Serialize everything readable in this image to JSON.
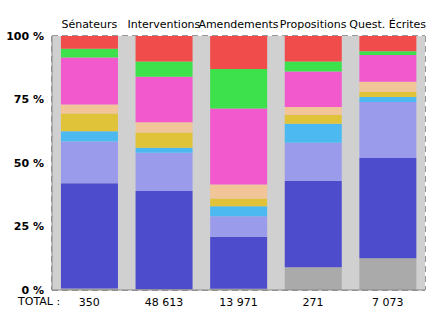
{
  "chart_data": {
    "type": "bar",
    "stacked": true,
    "grid": true,
    "categories": [
      "Sénateurs",
      "Interventions",
      "Amendements",
      "Propositions",
      "Quest. Écrites"
    ],
    "ylim": [
      0,
      100
    ],
    "yticks": [
      {
        "value": 0,
        "label": "0 %"
      },
      {
        "value": 25,
        "label": "25 %"
      },
      {
        "value": 50,
        "label": "50 %"
      },
      {
        "value": 75,
        "label": "75 %"
      },
      {
        "value": 100,
        "label": "100 %"
      }
    ],
    "series": [
      {
        "color": "#a8a8a8",
        "values": [
          0.6,
          0.3,
          0.5,
          9,
          12.5
        ]
      },
      {
        "color": "#4444cc",
        "values": [
          41.4,
          38.7,
          20.5,
          34,
          39.5
        ]
      },
      {
        "color": "#9898ec",
        "values": [
          16.5,
          15,
          8,
          15,
          22
        ]
      },
      {
        "color": "#44b8f2",
        "values": [
          4,
          2,
          4,
          7.5,
          2
        ]
      },
      {
        "color": "#e2c232",
        "values": [
          7,
          6,
          3,
          3.5,
          2
        ]
      },
      {
        "color": "#f2c494",
        "values": [
          3.5,
          4,
          5.5,
          3,
          4
        ]
      },
      {
        "color": "#f252cc",
        "values": [
          18.5,
          18,
          30,
          14,
          10.5
        ]
      },
      {
        "color": "#34e244",
        "values": [
          3.5,
          6,
          15.5,
          4,
          1.5
        ]
      },
      {
        "color": "#f24444",
        "values": [
          5,
          10,
          13,
          10,
          6
        ]
      }
    ],
    "totals_label": "TOTAL :",
    "totals": [
      {
        "value": 350,
        "label": "350"
      },
      {
        "value": 48613,
        "label": "48 613"
      },
      {
        "value": 13971,
        "label": "13 971"
      },
      {
        "value": 271,
        "label": "271"
      },
      {
        "value": 7073,
        "label": "7 073"
      }
    ]
  }
}
